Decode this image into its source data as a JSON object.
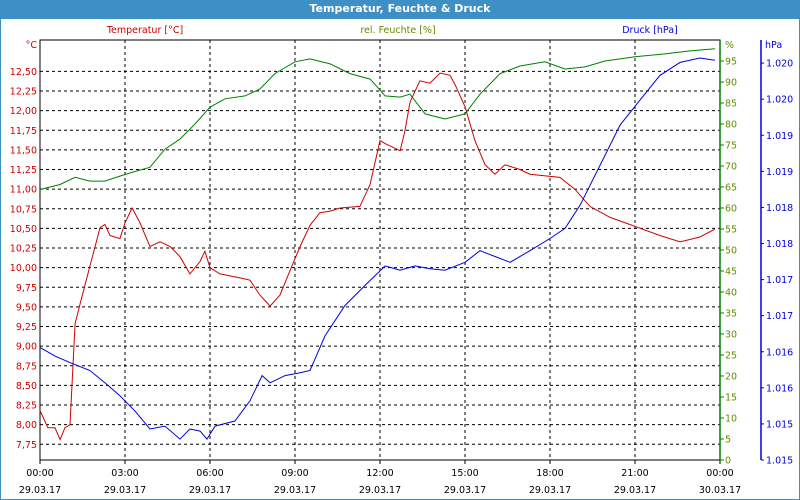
{
  "window": {
    "title": "Temperatur, Feuchte & Druck"
  },
  "colors": {
    "temp": "#d00000",
    "hum": "#008000",
    "hum_text": "#6a8a00",
    "press": "#0000e0",
    "title_bg": "#3d8fc6"
  },
  "chart_data": {
    "type": "line",
    "title": "Temperatur, Feuchte & Druck",
    "x_unit": "hours since 29.03.17 00:00",
    "xlim": [
      0,
      24
    ],
    "x_ticks": [
      {
        "time": "00:00",
        "date": "29.03.17"
      },
      {
        "time": "03:00",
        "date": "29.03.17"
      },
      {
        "time": "06:00",
        "date": "29.03.17"
      },
      {
        "time": "09:00",
        "date": "29.03.17"
      },
      {
        "time": "12:00",
        "date": "29.03.17"
      },
      {
        "time": "15:00",
        "date": "29.03.17"
      },
      {
        "time": "18:00",
        "date": "29.03.17"
      },
      {
        "time": "21:00",
        "date": "29.03.17"
      },
      {
        "time": "00:00",
        "date": "30.03.17"
      }
    ],
    "axes": {
      "temp": {
        "legend": "Temperatur [°C]",
        "unit": "°C",
        "ylim": [
          7.55,
          12.9
        ],
        "ticks": [
          "12,50",
          "12,25",
          "12,00",
          "11,75",
          "11,50",
          "11,25",
          "11,00",
          "10,75",
          "10,50",
          "10,25",
          "10,00",
          "9,75",
          "9,50",
          "9,25",
          "9,00",
          "8,75",
          "8,50",
          "8,25",
          "8,00",
          "7,75"
        ],
        "tick_values": [
          12.5,
          12.25,
          12.0,
          11.75,
          11.5,
          11.25,
          11.0,
          10.75,
          10.5,
          10.25,
          10.0,
          9.75,
          9.5,
          9.25,
          9.0,
          8.75,
          8.5,
          8.25,
          8.0,
          7.75
        ]
      },
      "hum": {
        "legend": "rel. Feuchte [%]",
        "unit": "%",
        "ylim": [
          0,
          100
        ],
        "ticks": [
          "95",
          "90",
          "85",
          "80",
          "75",
          "70",
          "65",
          "60",
          "55",
          "50",
          "45",
          "40",
          "35",
          "30",
          "25",
          "20",
          "15",
          "10",
          "5",
          "0"
        ],
        "tick_values": [
          95,
          90,
          85,
          80,
          75,
          70,
          65,
          60,
          55,
          50,
          45,
          40,
          35,
          30,
          25,
          20,
          15,
          10,
          5,
          0
        ]
      },
      "press": {
        "legend": "Druck [hPa]",
        "unit": "hPa",
        "ylim": [
          1.015,
          1.02082
        ],
        "ticks": [
          "1.020",
          "1.020",
          "1.019",
          "1.019",
          "1.018",
          "1.018",
          "1.017",
          "1.017",
          "1.016",
          "1.016",
          "1.015",
          "1.015"
        ],
        "tick_values": [
          1.0205,
          1.02,
          1.0195,
          1.019,
          1.0185,
          1.018,
          1.0175,
          1.017,
          1.0165,
          1.016,
          1.0155,
          1.015
        ]
      }
    },
    "series": [
      {
        "name": "Temperatur",
        "axis": "temp",
        "x": [
          0,
          0.28,
          0.53,
          0.71,
          0.88,
          1.06,
          1.24,
          1.41,
          1.76,
          2.12,
          2.29,
          2.47,
          2.82,
          3.0,
          3.25,
          3.53,
          3.88,
          4.24,
          4.59,
          4.94,
          5.29,
          5.65,
          5.82,
          6.0,
          6.35,
          7.06,
          7.41,
          7.76,
          8.12,
          8.47,
          8.82,
          9.18,
          9.53,
          9.88,
          10.24,
          10.59,
          11.29,
          11.65,
          12.0,
          12.18,
          12.71,
          12.88,
          13.06,
          13.41,
          13.76,
          14.12,
          14.47,
          14.65,
          15.0,
          15.35,
          15.71,
          16.06,
          16.41,
          16.94,
          17.29,
          18.35,
          18.88,
          19.41,
          20.12,
          20.82,
          21.88,
          22.59,
          23.29,
          23.82
        ],
        "y": [
          8.18,
          7.96,
          7.96,
          7.81,
          7.96,
          8.0,
          9.29,
          9.53,
          10.02,
          10.51,
          10.55,
          10.41,
          10.37,
          10.57,
          10.76,
          10.57,
          10.27,
          10.33,
          10.27,
          10.14,
          9.92,
          10.08,
          10.21,
          10.0,
          9.92,
          9.87,
          9.84,
          9.65,
          9.51,
          9.65,
          9.96,
          10.27,
          10.54,
          10.7,
          10.72,
          10.76,
          10.78,
          11.06,
          11.62,
          11.58,
          11.49,
          11.74,
          12.11,
          12.38,
          12.35,
          12.48,
          12.45,
          12.33,
          12.05,
          11.62,
          11.31,
          11.19,
          11.31,
          11.25,
          11.19,
          11.15,
          11.0,
          10.78,
          10.64,
          10.55,
          10.41,
          10.33,
          10.39,
          10.49
        ]
      },
      {
        "name": "rel. Feuchte",
        "axis": "hum",
        "x": [
          0,
          0.71,
          1.24,
          1.76,
          2.29,
          2.82,
          3.35,
          3.88,
          4.41,
          4.94,
          5.47,
          6.0,
          6.53,
          7.24,
          7.76,
          8.29,
          9.0,
          9.53,
          10.24,
          10.94,
          11.65,
          12.18,
          12.71,
          13.06,
          13.59,
          14.29,
          15.0,
          15.53,
          16.24,
          16.94,
          17.82,
          18.53,
          19.24,
          19.94,
          21.0,
          22.06,
          22.94,
          23.82
        ],
        "y": [
          64.4,
          65.6,
          67.3,
          66.4,
          66.4,
          67.6,
          68.7,
          69.7,
          74,
          76.4,
          80,
          84,
          86,
          86.7,
          88.3,
          92,
          94.8,
          95.5,
          94.3,
          92,
          90.7,
          86.7,
          86.4,
          87.1,
          82.4,
          81.2,
          82.4,
          87.1,
          92,
          93.8,
          94.8,
          93.1,
          93.6,
          95,
          96,
          96.7,
          97.4,
          97.9
        ]
      },
      {
        "name": "Druck",
        "axis": "press",
        "x": [
          0,
          0.53,
          1.06,
          1.76,
          2.29,
          2.82,
          3.35,
          3.88,
          4.41,
          4.94,
          5.29,
          5.65,
          5.89,
          6.18,
          6.88,
          7.41,
          7.84,
          8.12,
          8.65,
          9.18,
          9.53,
          10.06,
          10.76,
          11.47,
          12.18,
          12.71,
          13.24,
          13.76,
          14.29,
          15.0,
          15.53,
          16.06,
          16.59,
          17.29,
          18.0,
          18.53,
          19.06,
          19.76,
          20.47,
          21.18,
          21.88,
          22.59,
          23.29,
          23.82
        ],
        "y": [
          1.01656,
          1.01644,
          1.01635,
          1.01624,
          1.01607,
          1.01589,
          1.01568,
          1.01543,
          1.01547,
          1.01529,
          1.01543,
          1.0154,
          1.01529,
          1.01547,
          1.01554,
          1.01582,
          1.01617,
          1.01607,
          1.01617,
          1.01621,
          1.01624,
          1.01672,
          1.01714,
          1.01742,
          1.01769,
          1.01763,
          1.01769,
          1.01765,
          1.01763,
          1.01774,
          1.0179,
          1.01782,
          1.01774,
          1.0179,
          1.01807,
          1.01821,
          1.01853,
          1.01908,
          1.01964,
          1.01999,
          1.02033,
          1.02051,
          1.02057,
          1.02054
        ]
      }
    ]
  }
}
